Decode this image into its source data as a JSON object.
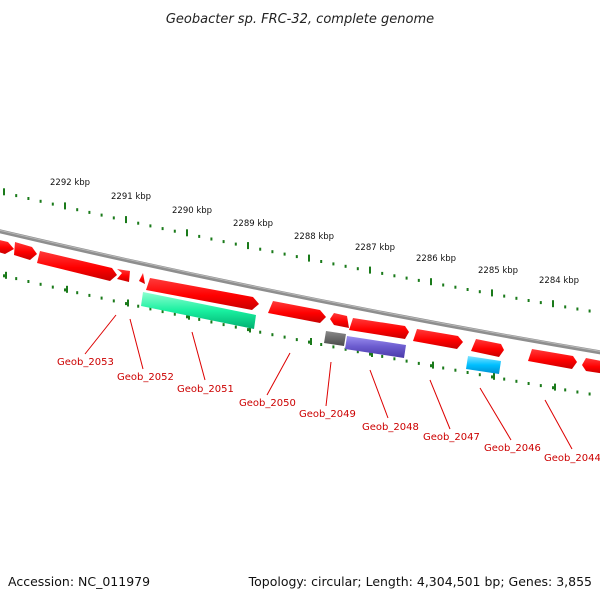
{
  "header": {
    "title": "Geobacter sp. FRC-32, complete genome"
  },
  "footer": {
    "accession": "Accession: NC_011979",
    "summary": "Topology: circular; Length: 4,304,501 bp; Genes: 3,855"
  },
  "colors": {
    "backbone": "#808080",
    "forward_ticks": "#1a7a1a",
    "label_line": "#dd0000",
    "label_text": "#cc0000"
  },
  "scale": {
    "unit": "kbp",
    "direction": "descending-left-to-right",
    "tick_labels": [
      "2292 kbp",
      "2291 kbp",
      "2290 kbp",
      "2289 kbp",
      "2288 kbp",
      "2287 kbp",
      "2286 kbp",
      "2285 kbp",
      "2284 kbp"
    ]
  },
  "genes": [
    {
      "label": "",
      "strand": "+",
      "color": "#ff0000"
    },
    {
      "label": "",
      "strand": "+",
      "color": "#ff0000"
    },
    {
      "label": "",
      "strand": "+",
      "color": "#ff0000"
    },
    {
      "label": "",
      "strand": "+",
      "color": "#ff0000"
    },
    {
      "label": "",
      "strand": "+",
      "color": "#ff0000"
    },
    {
      "label": "",
      "strand": "+",
      "color": "#ff0000"
    },
    {
      "label": "",
      "strand": "+",
      "color": "#ff0000"
    },
    {
      "label": "",
      "strand": "+",
      "color": "#ff0000"
    },
    {
      "label": "",
      "strand": "+",
      "color": "#ff0000"
    },
    {
      "label": "",
      "strand": "+",
      "color": "#ff0000"
    },
    {
      "label": "",
      "strand": "+",
      "color": "#ff0000"
    },
    {
      "label": "",
      "strand": "+",
      "color": "#ff0000"
    },
    {
      "label": "",
      "strand": "-",
      "color": "#00e08a"
    },
    {
      "label": "",
      "strand": "-",
      "color": "#666666"
    },
    {
      "label": "",
      "strand": "-",
      "color": "#6a5acd"
    },
    {
      "label": "",
      "strand": "-",
      "color": "#00bfff"
    }
  ],
  "gene_labels": [
    "Geob_2053",
    "Geob_2052",
    "Geob_2051",
    "Geob_2050",
    "Geob_2049",
    "Geob_2048",
    "Geob_2047",
    "Geob_2046",
    "Geob_2044"
  ]
}
